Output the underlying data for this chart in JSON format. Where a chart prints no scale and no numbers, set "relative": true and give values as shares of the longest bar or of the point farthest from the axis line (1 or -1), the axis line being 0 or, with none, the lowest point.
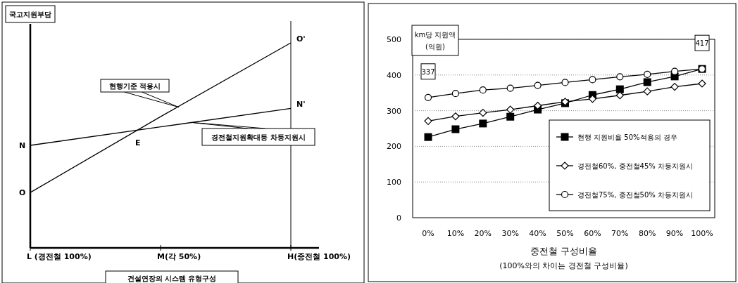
{
  "chart_data": [
    {
      "type": "line",
      "relative": true,
      "ylabel": "국고지원부담",
      "xlabel": "건설연장의 시스템 유형구성",
      "categories": [
        "L (경전철 100%)",
        "M(각 50%)",
        "H(중전철 100%)"
      ],
      "series": [
        {
          "name": "현행기준 적용시",
          "color": "#000000",
          "values": [
            0.27,
            0.64,
            1
          ]
        },
        {
          "name": "경전철지원확대등 차등지원시",
          "color": "#000000",
          "values": [
            0.5,
            0.59,
            0.68
          ]
        }
      ],
      "annotations": [
        "O",
        "N",
        "O'",
        "N'",
        "E"
      ],
      "ref_lines": [
        {
          "axis": "x",
          "value": "H(중전철 100%)"
        }
      ]
    },
    {
      "type": "line",
      "ylabel": "km당 지원액 (억원)",
      "xlabel": "중전철 구성비율",
      "categories": [
        "0%",
        "10%",
        "20%",
        "30%",
        "40%",
        "50%",
        "60%",
        "70%",
        "80%",
        "90%",
        "100%"
      ],
      "ylim": [
        0,
        500
      ],
      "yticks": [
        0,
        100,
        200,
        300,
        400,
        500
      ],
      "grid": "y",
      "legend": "bottom right",
      "series": [
        {
          "name": "현행 지원비율 50%적용의 경우",
          "color": "#000000",
          "marker": "square",
          "values": [
            226,
            248,
            264,
            283,
            303,
            321,
            344,
            360,
            380,
            396,
            417
          ]
        },
        {
          "name": "경전철60%, 중전철45% 차등지원시",
          "color": "#000000",
          "marker": "diamond",
          "values": [
            271,
            284,
            294,
            303,
            314,
            325,
            333,
            343,
            354,
            367,
            376
          ]
        },
        {
          "name": "경전철75%, 중전철50% 차등지원시",
          "color": "#000000",
          "marker": "circle",
          "values": [
            337,
            348,
            358,
            363,
            371,
            379,
            387,
            395,
            402,
            410,
            417
          ],
          "value_labels": [
            "337",
            null,
            null,
            null,
            null,
            null,
            null,
            null,
            null,
            null,
            "417"
          ]
        }
      ],
      "annotations": [
        "(100%와의 차이는 경전철 구성비율)"
      ]
    }
  ]
}
